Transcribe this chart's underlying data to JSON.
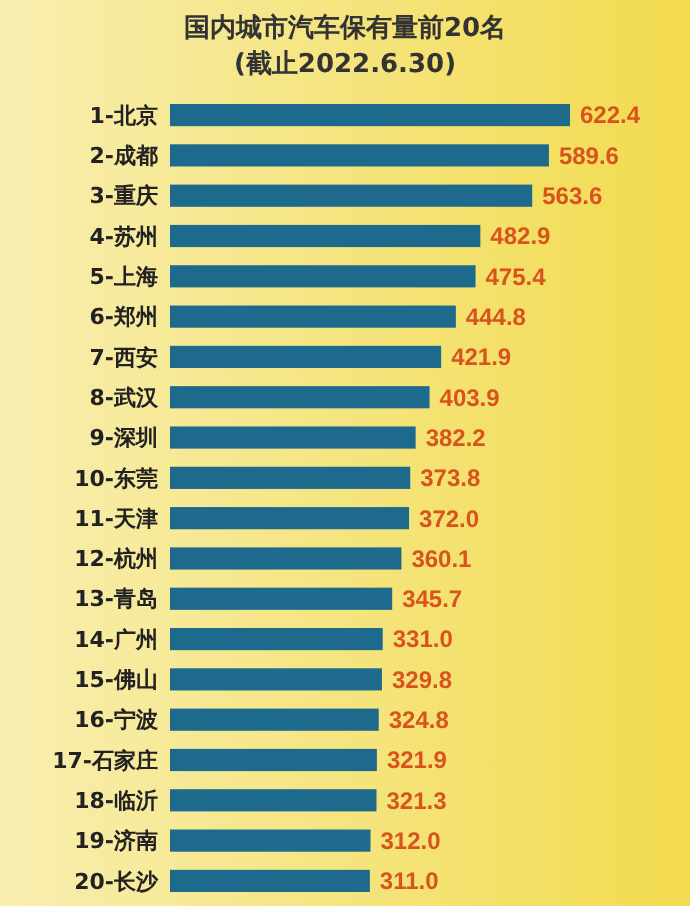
{
  "chart_data": {
    "type": "bar",
    "orientation": "horizontal",
    "title": "国内城市汽车保有量前20名",
    "subtitle": "(截止2022.6.30)",
    "categories": [
      "1-北京",
      "2-成都",
      "3-重庆",
      "4-苏州",
      "5-上海",
      "6-郑州",
      "7-西安",
      "8-武汉",
      "9-深圳",
      "10-东莞",
      "11-天津",
      "12-杭州",
      "13-青岛",
      "14-广州",
      "15-佛山",
      "16-宁波",
      "17-石家庄",
      "18-临沂",
      "19-济南",
      "20-长沙"
    ],
    "values": [
      622.4,
      589.6,
      563.6,
      482.9,
      475.4,
      444.8,
      421.9,
      403.9,
      382.2,
      373.8,
      372.0,
      360.1,
      345.7,
      331.0,
      329.8,
      324.8,
      321.9,
      321.3,
      312.0,
      311.0
    ],
    "value_labels": [
      "622.4",
      "589.6",
      "563.6",
      "482.9",
      "475.4",
      "444.8",
      "421.9",
      "403.9",
      "382.2",
      "373.8",
      "372.0",
      "360.1",
      "345.7",
      "331.0",
      "329.8",
      "324.8",
      "321.9",
      "321.3",
      "312.0",
      "311.0"
    ],
    "color": "#1d6a8c"
  }
}
